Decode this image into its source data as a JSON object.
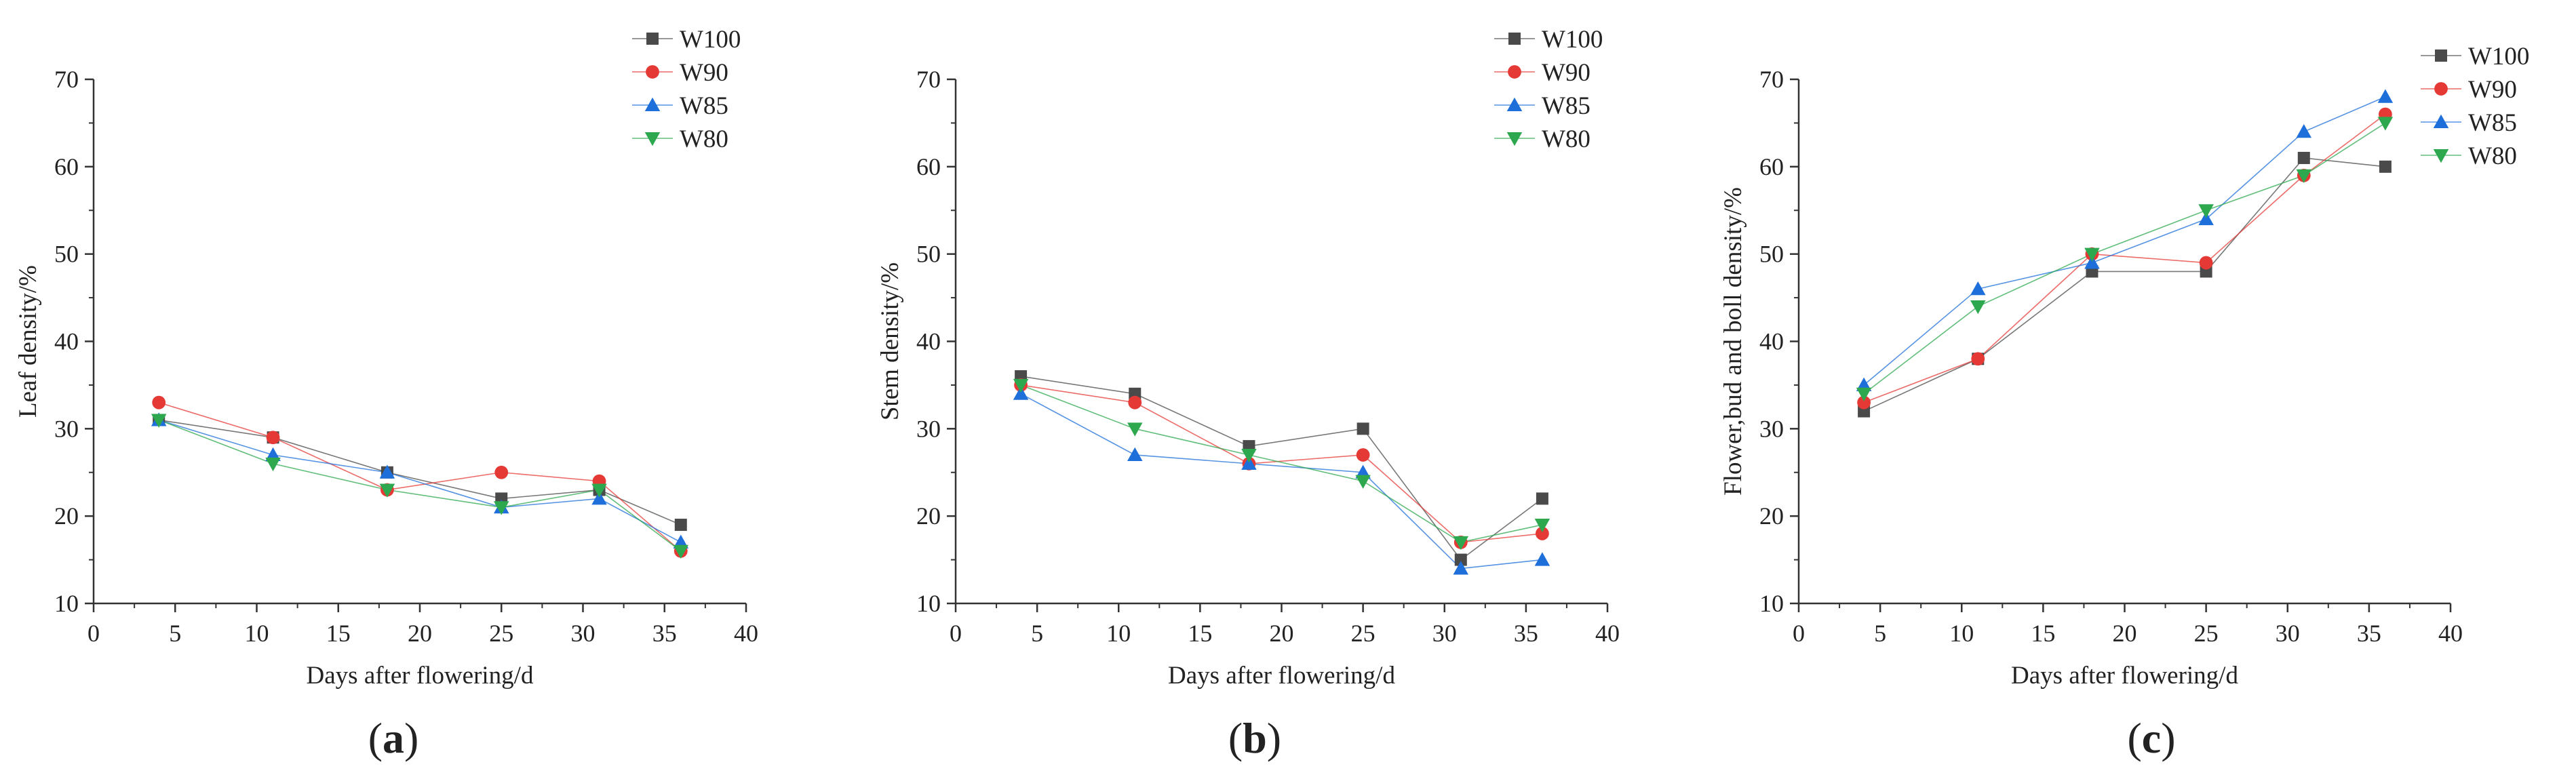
{
  "chart_data": [
    {
      "type": "line",
      "panel_label": "a",
      "title": "",
      "xlabel": "Days after flowering/d",
      "ylabel": "Leaf density/%",
      "xlim": [
        0,
        40
      ],
      "ylim": [
        10,
        70
      ],
      "xticks": [
        0,
        5,
        10,
        15,
        20,
        25,
        30,
        35,
        40
      ],
      "yticks": [
        10,
        20,
        30,
        40,
        50,
        60,
        70
      ],
      "grid": false,
      "legend_position": "top-right",
      "x": [
        4,
        11,
        18,
        25,
        31,
        36
      ],
      "series": [
        {
          "name": "W100",
          "values": [
            31,
            29,
            25,
            22,
            23,
            19
          ]
        },
        {
          "name": "W90",
          "values": [
            33,
            29,
            23,
            25,
            24,
            16
          ]
        },
        {
          "name": "W85",
          "values": [
            31,
            27,
            25,
            21,
            22,
            17
          ]
        },
        {
          "name": "W80",
          "values": [
            31,
            26,
            23,
            21,
            23,
            16
          ]
        }
      ]
    },
    {
      "type": "line",
      "panel_label": "b",
      "title": "",
      "xlabel": "Days after flowering/d",
      "ylabel": "Stem density/%",
      "xlim": [
        0,
        40
      ],
      "ylim": [
        10,
        70
      ],
      "xticks": [
        0,
        5,
        10,
        15,
        20,
        25,
        30,
        35,
        40
      ],
      "yticks": [
        10,
        20,
        30,
        40,
        50,
        60,
        70
      ],
      "grid": false,
      "legend_position": "top-right",
      "x": [
        4,
        11,
        18,
        25,
        31,
        36
      ],
      "series": [
        {
          "name": "W100",
          "values": [
            36,
            34,
            28,
            30,
            15,
            22
          ]
        },
        {
          "name": "W90",
          "values": [
            35,
            33,
            26,
            27,
            17,
            18
          ]
        },
        {
          "name": "W85",
          "values": [
            34,
            27,
            26,
            25,
            14,
            15
          ]
        },
        {
          "name": "W80",
          "values": [
            35,
            30,
            27,
            24,
            17,
            19
          ]
        }
      ]
    },
    {
      "type": "line",
      "panel_label": "c",
      "title": "",
      "xlabel": "Days after flowering/d",
      "ylabel": "Flower,bud and boll density/%",
      "xlim": [
        0,
        40
      ],
      "ylim": [
        10,
        70
      ],
      "xticks": [
        0,
        5,
        10,
        15,
        20,
        25,
        30,
        35,
        40
      ],
      "yticks": [
        10,
        20,
        30,
        40,
        50,
        60,
        70
      ],
      "grid": false,
      "legend_position": "top-right",
      "x": [
        4,
        11,
        18,
        25,
        31,
        36
      ],
      "series": [
        {
          "name": "W100",
          "values": [
            32,
            38,
            48,
            48,
            61,
            60
          ]
        },
        {
          "name": "W90",
          "values": [
            33,
            38,
            50,
            49,
            59,
            66
          ]
        },
        {
          "name": "W85",
          "values": [
            35,
            46,
            49,
            54,
            64,
            68
          ]
        },
        {
          "name": "W80",
          "values": [
            34,
            44,
            50,
            55,
            59,
            65
          ]
        }
      ]
    }
  ],
  "series_styles": {
    "W100": {
      "color": "#4a4a4a",
      "marker": "square"
    },
    "W90": {
      "color": "#e53935",
      "marker": "circle"
    },
    "W85": {
      "color": "#1e6fd9",
      "marker": "triangle-up"
    },
    "W80": {
      "color": "#2ea84f",
      "marker": "triangle-down"
    }
  },
  "colors": {
    "axis": "#333333",
    "text": "#222222"
  }
}
